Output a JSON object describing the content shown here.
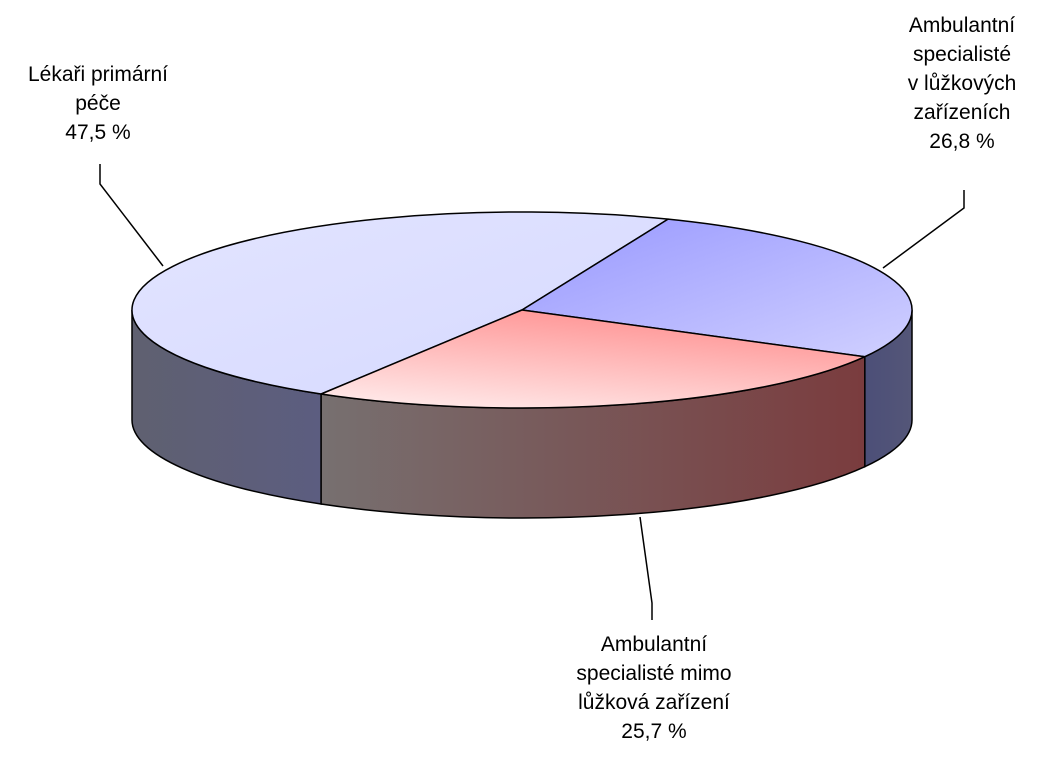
{
  "chart_data": {
    "type": "pie",
    "three_d": true,
    "slices": [
      {
        "lines": [
          "Lékaři primární",
          "péče"
        ],
        "value": 47.5,
        "value_label": "47,5 %",
        "color": "#d9dcff"
      },
      {
        "lines": [
          "Ambulantní",
          "specialisté",
          "v lůžkových",
          "zařízeních"
        ],
        "value": 26.8,
        "value_label": "26,8 %",
        "color": "#a8a8ff"
      },
      {
        "lines": [
          "Ambulantní",
          "specialisté mimo",
          "lůžková zařízení"
        ],
        "value": 25.7,
        "value_label": "25,7 %",
        "color": "#ff9a9a"
      }
    ],
    "legend": "none"
  }
}
